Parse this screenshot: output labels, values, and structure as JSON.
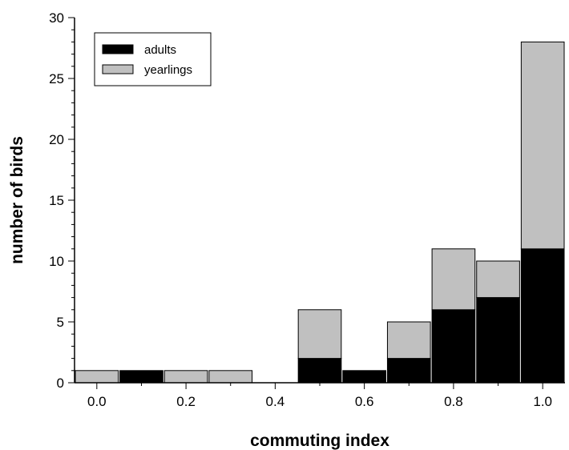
{
  "chart_data": {
    "type": "bar",
    "stacked": true,
    "xlabel": "commuting index",
    "ylabel": "number of birds",
    "x": [
      0.0,
      0.1,
      0.2,
      0.3,
      0.4,
      0.5,
      0.6,
      0.7,
      0.8,
      0.9,
      1.0
    ],
    "xticks": [
      "0.0",
      "0.2",
      "0.4",
      "0.6",
      "0.8",
      "1.0"
    ],
    "yticks": [
      "0",
      "5",
      "10",
      "15",
      "20",
      "25",
      "30"
    ],
    "ylim": [
      0,
      30
    ],
    "xlim": [
      -0.05,
      1.05
    ],
    "series": [
      {
        "name": "adults",
        "color": "#000000",
        "values": [
          0,
          1,
          0,
          0,
          0,
          2,
          1,
          2,
          6,
          7,
          11
        ]
      },
      {
        "name": "yearlings",
        "color": "#c0c0c0",
        "values": [
          1,
          0,
          1,
          1,
          0,
          4,
          0,
          3,
          5,
          3,
          17
        ]
      }
    ],
    "legend_position": "top-left",
    "grid": false
  }
}
